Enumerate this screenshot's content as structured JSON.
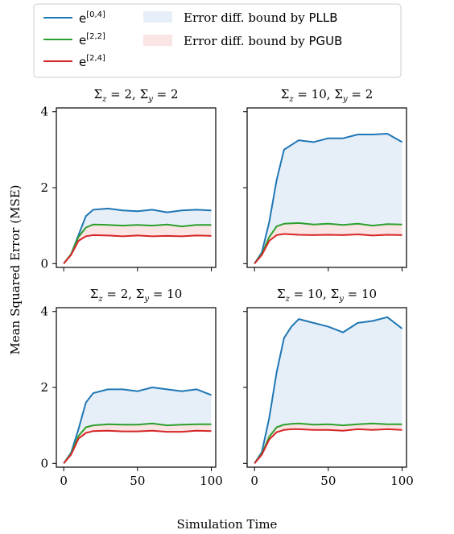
{
  "legend": {
    "placement": "top-left",
    "entries": [
      {
        "label_base": "e",
        "label_sup": "[0,4]",
        "kind": "line",
        "color": "#1f77b4"
      },
      {
        "label_base": "e",
        "label_sup": "[2,2]",
        "kind": "line",
        "color": "#2ca02c"
      },
      {
        "label_base": "e",
        "label_sup": "[2,4]",
        "kind": "line",
        "color": "#d62728"
      },
      {
        "label_text": "Error diff. bound by ",
        "label_code": "PLLB",
        "kind": "patch",
        "color": "#e6eff8"
      },
      {
        "label_text": "Error diff. bound by ",
        "label_code": "PGUB",
        "kind": "patch",
        "color": "#fbe4e4"
      }
    ]
  },
  "axes": {
    "ylabel": "Mean Squared Error (MSE)",
    "xlabel": "Simulation Time"
  },
  "chart_data": [
    {
      "type": "line",
      "title": "Σz = 2, Σy = 2",
      "title_a": "Σ",
      "title_a_sub": "z",
      "title_a_val": " = 2, ",
      "title_b": "Σ",
      "title_b_sub": "y",
      "title_b_val": " = 2",
      "x": [
        0,
        5,
        10,
        15,
        20,
        30,
        40,
        50,
        60,
        70,
        80,
        90,
        100
      ],
      "series": [
        {
          "name": "e[0,4]",
          "color": "#1f77b4",
          "values": [
            0.0,
            0.25,
            0.75,
            1.25,
            1.42,
            1.45,
            1.4,
            1.38,
            1.42,
            1.35,
            1.4,
            1.42,
            1.4
          ]
        },
        {
          "name": "e[2,2]",
          "color": "#2ca02c",
          "values": [
            0.0,
            0.25,
            0.7,
            0.95,
            1.03,
            1.02,
            1.0,
            1.02,
            1.0,
            1.03,
            0.98,
            1.02,
            1.02
          ]
        },
        {
          "name": "e[2,4]",
          "color": "#d62728",
          "values": [
            0.0,
            0.23,
            0.6,
            0.72,
            0.75,
            0.74,
            0.72,
            0.74,
            0.72,
            0.73,
            0.72,
            0.74,
            0.73
          ]
        }
      ],
      "xlim": [
        -5,
        103
      ],
      "ylim": [
        -0.1,
        4.1
      ],
      "xticks": [
        "",
        "",
        ""
      ],
      "yticks": [
        "0",
        "2",
        "4"
      ]
    },
    {
      "type": "line",
      "title": "Σz = 10, Σy = 2",
      "title_a": "Σ",
      "title_a_sub": "z",
      "title_a_val": " = 10, ",
      "title_b": "Σ",
      "title_b_sub": "y",
      "title_b_val": " = 2",
      "x": [
        0,
        5,
        10,
        15,
        20,
        30,
        40,
        50,
        60,
        70,
        80,
        90,
        100
      ],
      "series": [
        {
          "name": "e[0,4]",
          "color": "#1f77b4",
          "values": [
            0.0,
            0.3,
            1.1,
            2.2,
            3.0,
            3.25,
            3.2,
            3.3,
            3.3,
            3.4,
            3.4,
            3.42,
            3.2
          ]
        },
        {
          "name": "e[2,2]",
          "color": "#2ca02c",
          "values": [
            0.0,
            0.25,
            0.7,
            0.98,
            1.05,
            1.07,
            1.03,
            1.05,
            1.02,
            1.05,
            1.0,
            1.04,
            1.03
          ]
        },
        {
          "name": "e[2,4]",
          "color": "#d62728",
          "values": [
            0.0,
            0.23,
            0.6,
            0.75,
            0.78,
            0.76,
            0.75,
            0.76,
            0.75,
            0.77,
            0.74,
            0.76,
            0.75
          ]
        }
      ],
      "xlim": [
        -5,
        103
      ],
      "ylim": [
        -0.1,
        4.1
      ],
      "xticks": [
        "",
        "",
        ""
      ],
      "yticks": [
        "",
        "",
        ""
      ]
    },
    {
      "type": "line",
      "title": "Σz = 2, Σy = 10",
      "title_a": "Σ",
      "title_a_sub": "z",
      "title_a_val": " = 2, ",
      "title_b": "Σ",
      "title_b_sub": "y",
      "title_b_val": " = 10",
      "x": [
        0,
        5,
        10,
        15,
        20,
        30,
        40,
        50,
        60,
        70,
        80,
        90,
        100
      ],
      "series": [
        {
          "name": "e[0,4]",
          "color": "#1f77b4",
          "values": [
            0.0,
            0.28,
            0.9,
            1.6,
            1.85,
            1.95,
            1.95,
            1.9,
            2.0,
            1.95,
            1.9,
            1.95,
            1.8
          ]
        },
        {
          "name": "e[2,2]",
          "color": "#2ca02c",
          "values": [
            0.0,
            0.25,
            0.72,
            0.95,
            1.0,
            1.03,
            1.02,
            1.02,
            1.05,
            1.0,
            1.02,
            1.03,
            1.03
          ]
        },
        {
          "name": "e[2,4]",
          "color": "#d62728",
          "values": [
            0.0,
            0.23,
            0.65,
            0.8,
            0.85,
            0.86,
            0.84,
            0.84,
            0.86,
            0.83,
            0.83,
            0.86,
            0.85
          ]
        }
      ],
      "xlim": [
        -5,
        103
      ],
      "ylim": [
        -0.1,
        4.1
      ],
      "xticks": [
        "0",
        "50",
        "100"
      ],
      "yticks": [
        "0",
        "2",
        "4"
      ]
    },
    {
      "type": "line",
      "title": "Σz = 10, Σy = 10",
      "title_a": "Σ",
      "title_a_sub": "z",
      "title_a_val": " = 10, ",
      "title_b": "Σ",
      "title_b_sub": "y",
      "title_b_val": " = 10",
      "x": [
        0,
        5,
        10,
        15,
        20,
        25,
        30,
        40,
        50,
        60,
        70,
        80,
        90,
        100
      ],
      "series": [
        {
          "name": "e[0,4]",
          "color": "#1f77b4",
          "values": [
            0.0,
            0.3,
            1.2,
            2.4,
            3.3,
            3.6,
            3.8,
            3.7,
            3.6,
            3.45,
            3.7,
            3.75,
            3.85,
            3.55
          ]
        },
        {
          "name": "e[2,2]",
          "color": "#2ca02c",
          "values": [
            0.0,
            0.25,
            0.7,
            0.95,
            1.02,
            1.04,
            1.05,
            1.02,
            1.03,
            1.0,
            1.03,
            1.05,
            1.03,
            1.03
          ]
        },
        {
          "name": "e[2,4]",
          "color": "#d62728",
          "values": [
            0.0,
            0.23,
            0.63,
            0.82,
            0.88,
            0.9,
            0.9,
            0.88,
            0.88,
            0.86,
            0.9,
            0.88,
            0.9,
            0.88
          ]
        }
      ],
      "xlim": [
        -5,
        103
      ],
      "ylim": [
        -0.1,
        4.1
      ],
      "xticks": [
        "0",
        "50",
        "100"
      ],
      "yticks": [
        "",
        "",
        ""
      ]
    }
  ]
}
